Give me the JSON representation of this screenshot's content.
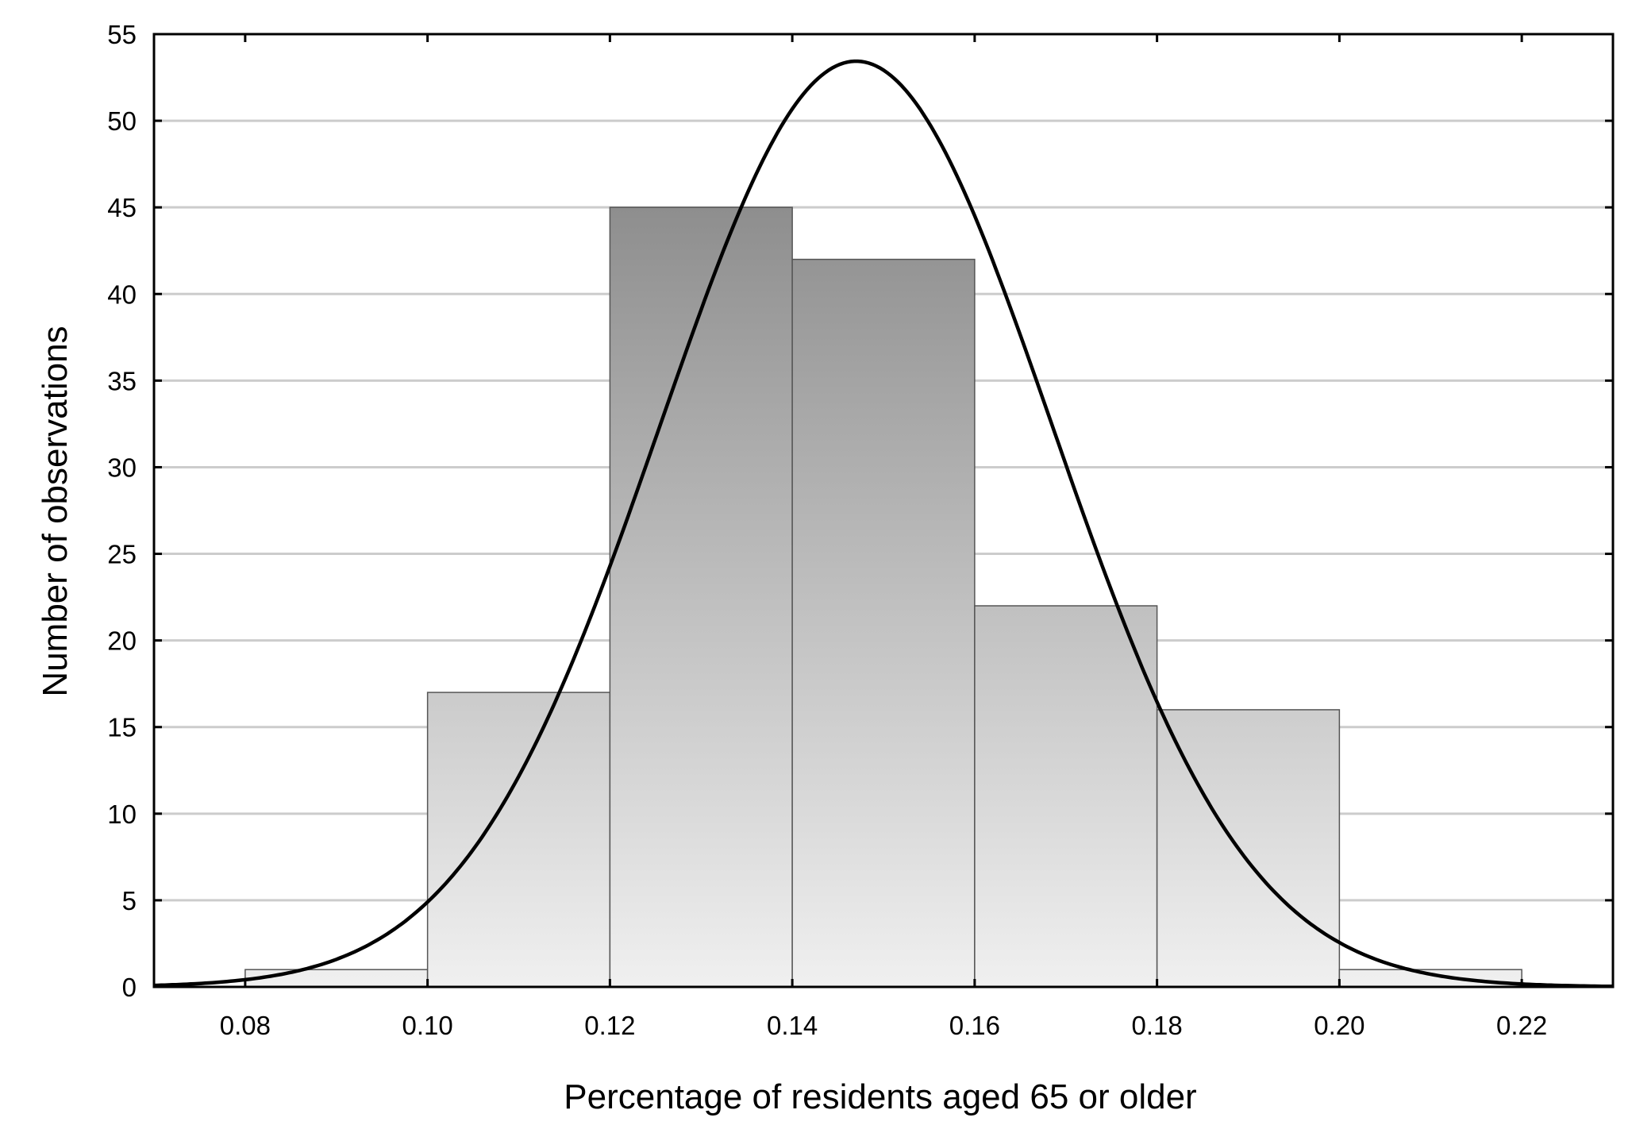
{
  "chart_data": {
    "type": "histogram",
    "xlabel": "Percentage of residents aged 65 or older",
    "ylabel": "Number of observations",
    "xlim": [
      0.07,
      0.23
    ],
    "ylim": [
      0,
      55
    ],
    "x_ticks": [
      "0.08",
      "0.10",
      "0.12",
      "0.14",
      "0.16",
      "0.18",
      "0.20",
      "0.22"
    ],
    "y_ticks": [
      "0",
      "5",
      "10",
      "15",
      "20",
      "25",
      "30",
      "35",
      "40",
      "45",
      "50",
      "55"
    ],
    "grid": "horizontal",
    "bins": [
      {
        "start": 0.08,
        "end": 0.1,
        "count": 1
      },
      {
        "start": 0.1,
        "end": 0.12,
        "count": 17
      },
      {
        "start": 0.12,
        "end": 0.14,
        "count": 45
      },
      {
        "start": 0.14,
        "end": 0.16,
        "count": 42
      },
      {
        "start": 0.16,
        "end": 0.18,
        "count": 22
      },
      {
        "start": 0.18,
        "end": 0.2,
        "count": 16
      },
      {
        "start": 0.2,
        "end": 0.22,
        "count": 1
      }
    ],
    "normal_fit": {
      "mean": 0.147,
      "sd": 0.0215,
      "n": 144,
      "bin_width": 0.02
    },
    "colors": {
      "gradient_top": "#8e8e8e",
      "gradient_bottom": "#f0f0f0",
      "grid": "#cccccc",
      "curve": "#000000"
    }
  }
}
